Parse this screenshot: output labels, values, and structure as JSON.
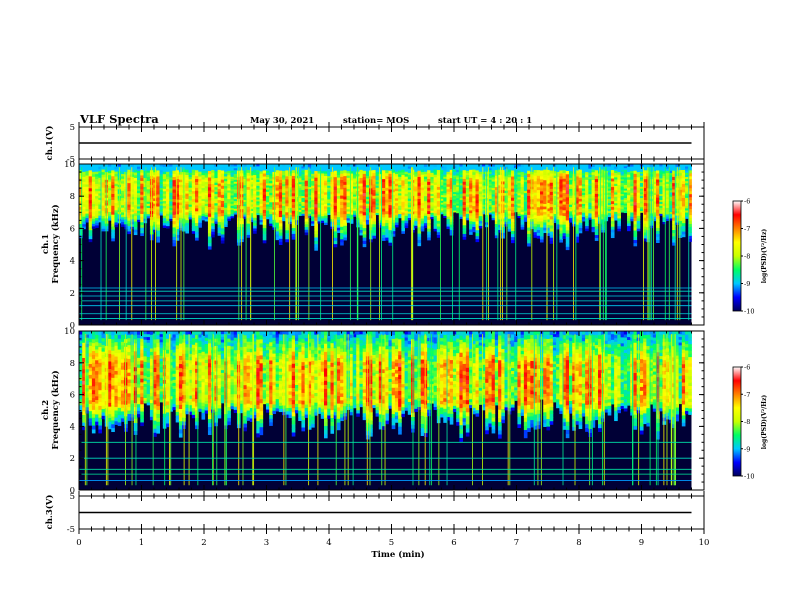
{
  "header": {
    "title": "VLF Spectra",
    "date": "May 30, 2021",
    "station": "station= MOS",
    "start": "start  UT  =   4 : 20 : 1"
  },
  "labels": {
    "ch1_v": "ch.1(V)",
    "ch3_v": "ch.3(V)",
    "freq_ch1": [
      "ch.1",
      "Frequency (kHz)"
    ],
    "freq_ch2": [
      "ch.2",
      "Frequency (kHz)"
    ],
    "xlabel": "Time  (min)",
    "colorbar": "log(PSD)(V²/Hz)"
  },
  "colors": {
    "background": "#000036",
    "colormap": [
      "#00005a",
      "#0000ff",
      "#00c8ff",
      "#00ff64",
      "#c8ff00",
      "#ffff00",
      "#ff8000",
      "#ff0000",
      "#ffffff"
    ]
  },
  "chart_data": [
    {
      "type": "line",
      "name": "ch1-voltage",
      "ylabel": "ch.1(V)",
      "xlim": [
        0,
        10
      ],
      "ylim": [
        -5,
        5
      ],
      "yticks": [
        5,
        -5
      ],
      "x": [
        0,
        9.8
      ],
      "y": [
        0,
        0
      ]
    },
    {
      "type": "heatmap",
      "name": "ch1-spectrogram",
      "ylabel": "ch.1 Frequency (kHz)",
      "xlim": [
        0,
        10
      ],
      "ylim": [
        0,
        10
      ],
      "yticks": [
        0,
        2,
        4,
        6,
        8,
        10
      ],
      "data_extent_min": 9.8,
      "emission_band_khz": [
        4.5,
        10
      ],
      "peak_band_khz": [
        7,
        9
      ],
      "colorbar": {
        "label": "log(PSD)(V²/Hz)",
        "ticks": [
          -6,
          -7,
          -8,
          -9,
          -10
        ],
        "range": [
          -10,
          -6
        ]
      }
    },
    {
      "type": "heatmap",
      "name": "ch2-spectrogram",
      "ylabel": "ch.2 Frequency (kHz)",
      "xlim": [
        0,
        10
      ],
      "ylim": [
        0,
        10
      ],
      "yticks": [
        0,
        2,
        4,
        6,
        8,
        10
      ],
      "data_extent_min": 9.8,
      "emission_band_khz": [
        3,
        10
      ],
      "peak_band_khz": [
        5.5,
        8
      ],
      "colorbar": {
        "label": "log(PSD)(V²/Hz)",
        "ticks": [
          -6,
          -7,
          -8,
          -9,
          -10
        ],
        "range": [
          -10,
          -6
        ]
      }
    },
    {
      "type": "line",
      "name": "ch3-voltage",
      "ylabel": "ch.3(V)",
      "xlabel": "Time  (min)",
      "xlim": [
        0,
        10
      ],
      "ylim": [
        -5,
        5
      ],
      "yticks": [
        5,
        -5
      ],
      "xticks": [
        0,
        1,
        2,
        3,
        4,
        5,
        6,
        7,
        8,
        9,
        10
      ],
      "x": [
        0,
        9.8
      ],
      "y": [
        0,
        0
      ]
    }
  ]
}
